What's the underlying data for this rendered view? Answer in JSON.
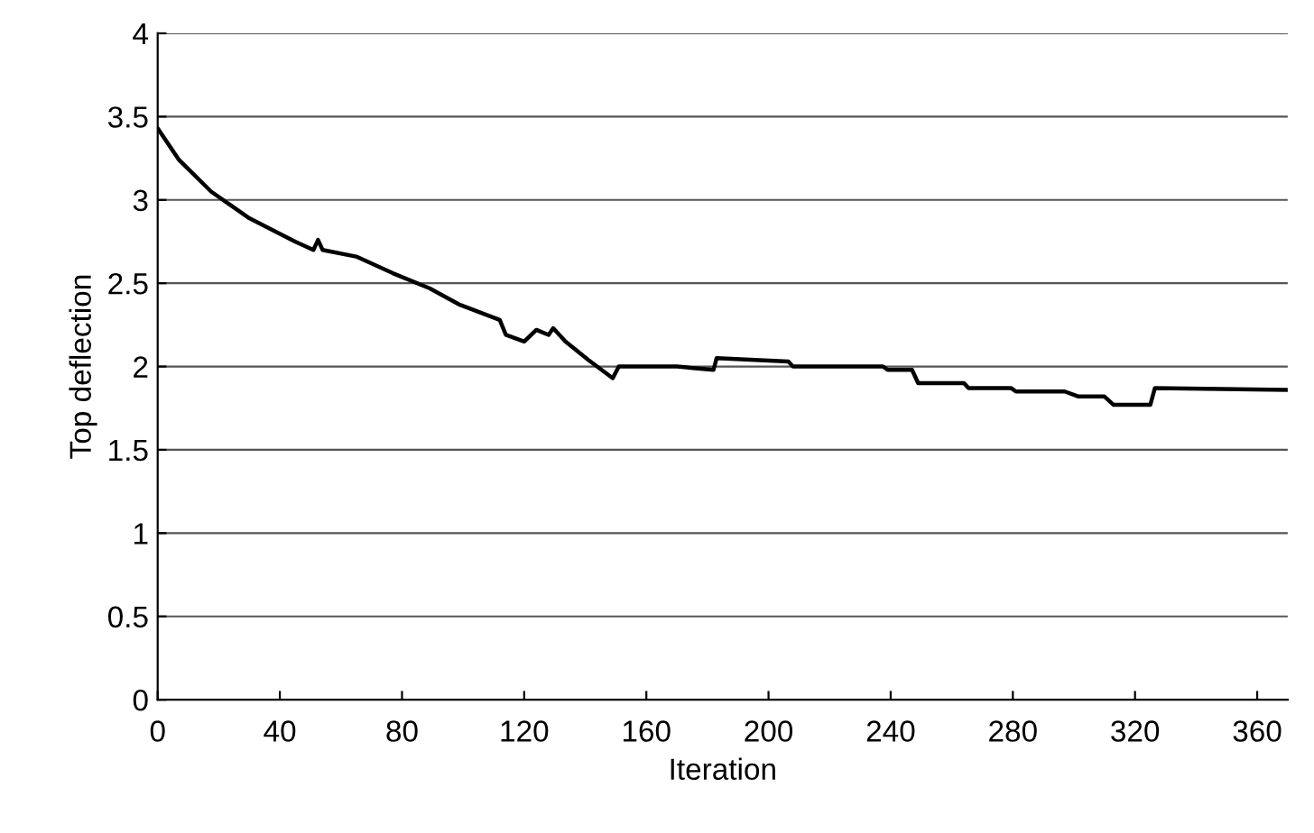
{
  "chart_data": {
    "type": "line",
    "xlabel": "Iteration",
    "ylabel": "Top deflection",
    "x": [
      0,
      7,
      17.5,
      30,
      45,
      51,
      52.5,
      54,
      65,
      77,
      89,
      99,
      112,
      114,
      120,
      124,
      128,
      129.5,
      133.5,
      141,
      149,
      151,
      170,
      182,
      183,
      206.5,
      208,
      237.5,
      239,
      247,
      249,
      264,
      265.5,
      279.5,
      281,
      297,
      301.5,
      310,
      313,
      325,
      326.5,
      370
    ],
    "series": [
      {
        "color": "#000000",
        "values": [
          3.43,
          3.24,
          3.05,
          2.89,
          2.75,
          2.7,
          2.76,
          2.7,
          2.66,
          2.56,
          2.47,
          2.37,
          2.28,
          2.19,
          2.15,
          2.22,
          2.19,
          2.23,
          2.15,
          2.04,
          1.93,
          2.0,
          2.0,
          1.98,
          2.05,
          2.03,
          2.0,
          2.0,
          1.98,
          1.98,
          1.9,
          1.9,
          1.87,
          1.87,
          1.85,
          1.85,
          1.82,
          1.82,
          1.77,
          1.77,
          1.87,
          1.86
        ]
      }
    ],
    "xlim": [
      0,
      370
    ],
    "xticks": [
      0,
      40,
      80,
      120,
      160,
      200,
      240,
      280,
      320,
      360
    ],
    "ylim": [
      0,
      4
    ],
    "yticks": [
      0,
      0.5,
      1,
      1.5,
      2,
      2.5,
      3,
      3.5,
      4
    ],
    "grid": "y",
    "legend": false,
    "marker": "none",
    "line_style": "solid"
  }
}
